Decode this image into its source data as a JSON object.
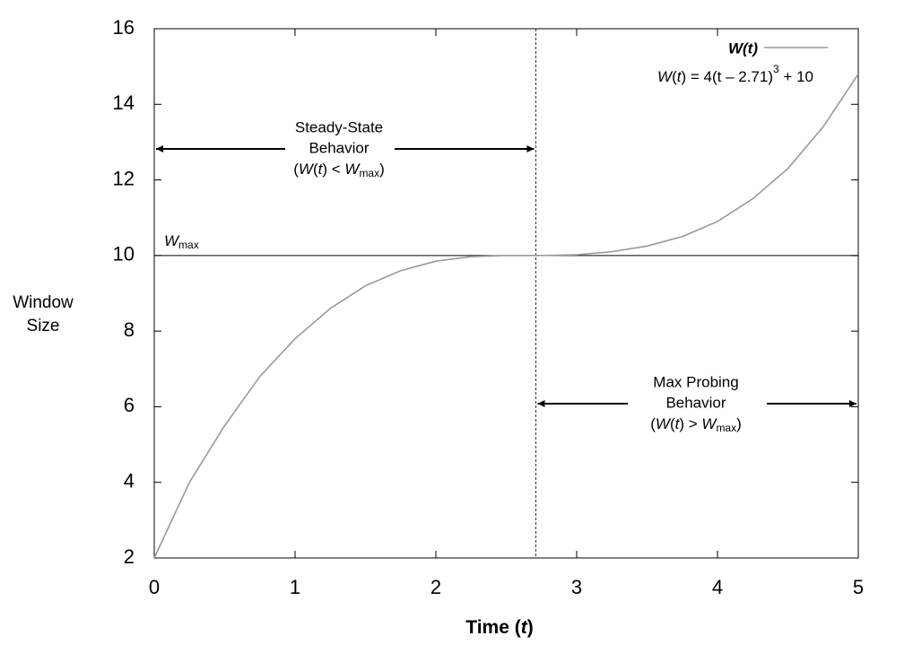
{
  "chart_data": {
    "type": "line",
    "x": [
      0,
      0.25,
      0.5,
      0.75,
      1,
      1.25,
      1.5,
      1.75,
      2,
      2.25,
      2.5,
      2.75,
      3,
      3.25,
      3.5,
      3.75,
      4,
      4.25,
      4.5,
      4.75,
      5
    ],
    "series": [
      {
        "name": "W(t)",
        "color": "#999999",
        "values": [
          2,
          4.0,
          5.5,
          6.8,
          7.8,
          8.6,
          9.2,
          9.6,
          9.85,
          9.97,
          10.0,
          10.0,
          10.02,
          10.1,
          10.25,
          10.5,
          10.9,
          11.5,
          12.3,
          13.4,
          14.8
        ]
      }
    ],
    "xlim": [
      0,
      5
    ],
    "xticks": [
      0,
      1,
      2,
      3,
      4,
      5
    ],
    "ylim": [
      2,
      16
    ],
    "yticks": [
      2,
      4,
      6,
      8,
      10,
      12,
      14,
      16
    ],
    "x_label": [
      "Time (",
      "t",
      ")"
    ],
    "y_label": [
      "Window",
      "Size"
    ],
    "legend": "top-right",
    "grid": false,
    "formula": [
      "W",
      "(",
      "t",
      ") = 4(t – 2.71)",
      "3",
      " + 10"
    ],
    "hline": 10,
    "hline_label": [
      "W",
      "max"
    ],
    "vline": 2.71,
    "steady_state": {
      "lines": [
        "Steady-State",
        "Behavior"
      ],
      "condition": [
        "(",
        "W",
        "(",
        "t",
        ") < ",
        "W",
        "max",
        ")"
      ]
    },
    "max_probing": {
      "lines": [
        "Max Probing",
        "Behavior"
      ],
      "condition": [
        "(",
        "W",
        "(",
        "t",
        ") > ",
        "W",
        "max",
        ")"
      ]
    }
  }
}
